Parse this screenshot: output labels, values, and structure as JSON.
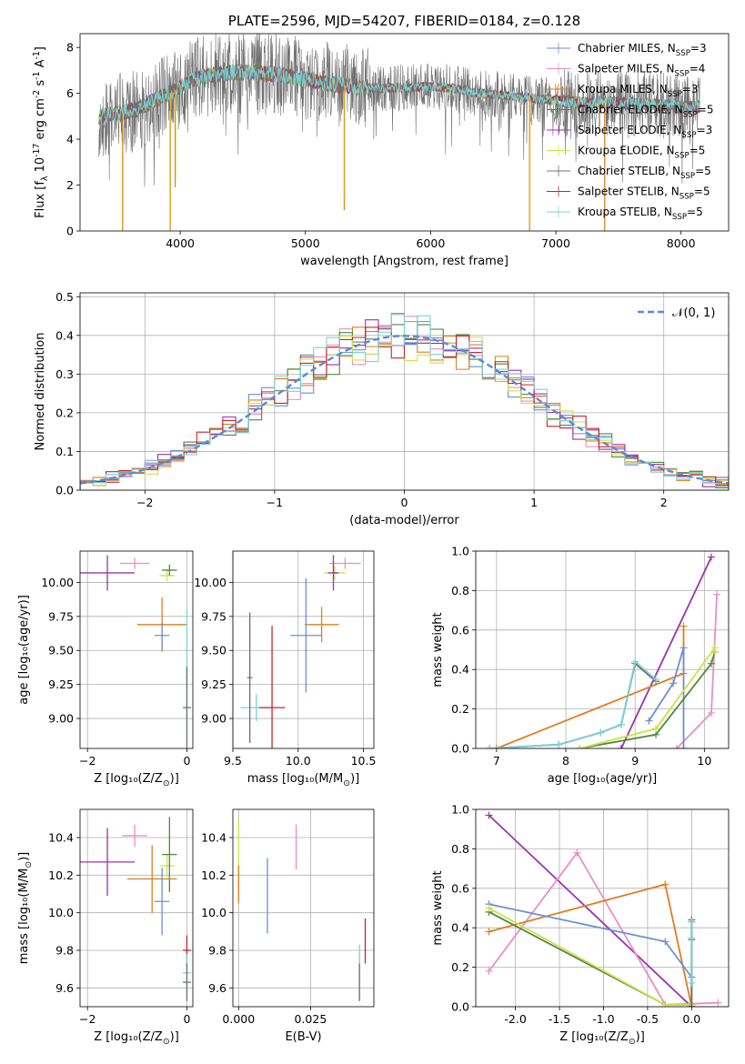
{
  "chart_data": [
    {
      "id": "spectrum",
      "type": "line",
      "title": "PLATE=2596, MJD=54207, FIBERID=0184, z=0.128",
      "xlabel": "wavelength [Angstrom, rest frame]",
      "ylabel": "Flux [$f_\\lambda 10^{-17}$ erg cm$^{-2}$ s$^{-1}$ A$^{-1}$]",
      "xlim": [
        3200,
        8380
      ],
      "ylim": [
        0,
        8.6
      ],
      "xticks": [
        4000,
        5000,
        6000,
        7000,
        8000
      ],
      "yticks": [
        0,
        2,
        4,
        6,
        8
      ],
      "legend": "top-right",
      "grid": false,
      "series": [
        {
          "name": "Chabrier MILES, N$_{SSP}$=3",
          "color": "#6c8fd6"
        },
        {
          "name": "Salpeter MILES, N$_{SSP}$=4",
          "color": "#e98fc4"
        },
        {
          "name": "Kroupa MILES, N$_{SSP}$=3",
          "color": "#e37d1d"
        },
        {
          "name": "Chabrier ELODIE, N$_{SSP}$=5",
          "color": "#4e8a3b"
        },
        {
          "name": "Salpeter ELODIE, N$_{SSP}$=3",
          "color": "#9b32ad"
        },
        {
          "name": "Kroupa ELODIE, N$_{SSP}$=5",
          "color": "#cfe04a"
        },
        {
          "name": "Chabrier STELIB, N$_{SSP}$=5",
          "color": "#707070"
        },
        {
          "name": "Salpeter STELIB, N$_{SSP}$=5",
          "color": "#c8232c"
        },
        {
          "name": "Kroupa STELIB, N$_{SSP}$=5",
          "color": "#79d2d6"
        }
      ],
      "continuum": {
        "x": [
          3350,
          3500,
          3650,
          3800,
          3950,
          4100,
          4250,
          4400,
          4600,
          4800,
          5000,
          5200,
          5400,
          5600,
          5800,
          6000,
          6200,
          6400,
          6600,
          6800,
          7000,
          7200,
          7400,
          7600,
          7800,
          8000,
          8150
        ],
        "y": [
          5.0,
          5.1,
          5.3,
          5.7,
          6.1,
          6.6,
          6.8,
          6.9,
          6.9,
          6.8,
          6.6,
          6.4,
          6.3,
          6.2,
          6.25,
          6.3,
          6.2,
          6.0,
          5.9,
          5.8,
          5.7,
          5.6,
          5.6,
          5.55,
          5.5,
          5.4,
          5.4
        ]
      },
      "absorption_lines": [
        {
          "x": 3540,
          "y": 0.0
        },
        {
          "x": 3920,
          "y": 0.0
        },
        {
          "x": 3960,
          "y": 1.9
        },
        {
          "x": 5310,
          "y": 0.9
        },
        {
          "x": 6790,
          "y": 0.0
        },
        {
          "x": 7390,
          "y": 0.0
        }
      ]
    },
    {
      "id": "residuals",
      "type": "bar",
      "xlabel": "(data-model)/error",
      "ylabel": "Normed distribution",
      "xlim": [
        -2.5,
        2.5
      ],
      "ylim": [
        0,
        0.51
      ],
      "xticks": [
        -2,
        -1,
        0,
        1,
        2
      ],
      "yticks": [
        0.0,
        0.1,
        0.2,
        0.3,
        0.4,
        0.5
      ],
      "grid": true,
      "legend": "top-right",
      "reference": {
        "name": "$\\mathcal{N}(0,1)$",
        "color": "#5b8ad8",
        "style": "dashed"
      },
      "bin_edges_start": -2.5,
      "bin_width": 0.1,
      "base_curve": "gaussian"
    },
    {
      "id": "age_vs_Z",
      "type": "scatter",
      "xlabel": "Z [$\\log_{10}(Z/Z_\\odot)$]",
      "ylabel": "age  [$\\log_{10}(age/yr)$]",
      "xlim": [
        -2.15,
        0.12
      ],
      "ylim": [
        8.78,
        10.23
      ],
      "xticks": [
        -2,
        0
      ],
      "yticks": [
        9.0,
        9.25,
        9.5,
        9.75,
        10.0
      ],
      "grid": true,
      "points": [
        {
          "series": 4,
          "x": -1.6,
          "y": 10.07,
          "xerr": 0.55,
          "yerr": 0.13
        },
        {
          "series": 1,
          "x": -1.05,
          "y": 10.14,
          "xerr": 0.3,
          "yerr": 0.04
        },
        {
          "series": 5,
          "x": -0.4,
          "y": 10.05,
          "xerr": 0.15,
          "yerr": 0.04
        },
        {
          "series": 3,
          "x": -0.35,
          "y": 10.09,
          "xerr": 0.15,
          "yerr": 0.04
        },
        {
          "series": 2,
          "x": -0.5,
          "y": 9.69,
          "xerr": 0.5,
          "yerr": 0.2
        },
        {
          "series": 0,
          "x": -0.5,
          "y": 9.61,
          "xerr": 0.15,
          "yerr": 0.1
        },
        {
          "series": 8,
          "x": 0.0,
          "y": 9.3,
          "xerr": 0.02,
          "yerr": 0.5
        },
        {
          "series": 6,
          "x": 0.0,
          "y": 9.08,
          "xerr": 0.08,
          "yerr": 0.3
        }
      ]
    },
    {
      "id": "age_vs_mass",
      "type": "scatter",
      "xlabel": "mass [$\\log_{10}(M/M_\\odot)$]",
      "ylabel": "",
      "xlim": [
        9.5,
        10.58
      ],
      "ylim": [
        8.78,
        10.23
      ],
      "xticks": [
        9.5,
        10.0,
        10.5
      ],
      "yticks": [
        9.0,
        9.25,
        9.5,
        9.75,
        10.0
      ],
      "grid": true,
      "points": [
        {
          "series": 1,
          "x": 10.36,
          "y": 10.14,
          "xerr": 0.12,
          "yerr": 0.04
        },
        {
          "series": 5,
          "x": 10.28,
          "y": 10.07,
          "xerr": 0.08,
          "yerr": 0.05
        },
        {
          "series": 4,
          "x": 10.27,
          "y": 10.07,
          "xerr": 0.04,
          "yerr": 0.13
        },
        {
          "series": 2,
          "x": 10.18,
          "y": 9.69,
          "xerr": 0.13,
          "yerr": 0.13
        },
        {
          "series": 0,
          "x": 10.06,
          "y": 9.61,
          "xerr": 0.12,
          "yerr": 0.42
        },
        {
          "series": 8,
          "x": 9.68,
          "y": 9.08,
          "xerr": 0.12,
          "yerr": 0.1
        },
        {
          "series": 7,
          "x": 9.8,
          "y": 9.08,
          "xerr": 0.1,
          "yerr": 0.6
        },
        {
          "series": 6,
          "x": 9.63,
          "y": 9.3,
          "xerr": 0.02,
          "yerr": 0.48
        }
      ]
    },
    {
      "id": "weight_vs_age",
      "type": "line",
      "xlabel": "age  [$\\log_{10}(age/yr)$]",
      "ylabel": "mass weight",
      "xlim": [
        6.7,
        10.35
      ],
      "ylim": [
        0,
        1.0
      ],
      "xticks": [
        7,
        8,
        9,
        10
      ],
      "yticks": [
        0.0,
        0.2,
        0.4,
        0.6,
        0.8,
        1.0
      ],
      "grid": true,
      "series": [
        {
          "ref": 4,
          "x": [
            8.8,
            10.1
          ],
          "y": [
            0.0,
            0.97
          ]
        },
        {
          "ref": 1,
          "x": [
            9.6,
            10.1,
            10.18
          ],
          "y": [
            0.0,
            0.18,
            0.78
          ]
        },
        {
          "ref": 2,
          "x": [
            7.0,
            9.7,
            9.7
          ],
          "y": [
            0.0,
            0.38,
            0.62
          ]
        },
        {
          "ref": 0,
          "x": [
            9.2,
            9.55,
            9.7,
            9.7
          ],
          "y": [
            0.14,
            0.33,
            0.51,
            0.0
          ]
        },
        {
          "ref": 3,
          "x": [
            8.2,
            9.3,
            10.1,
            10.15
          ],
          "y": [
            0.0,
            0.07,
            0.43,
            0.49
          ]
        },
        {
          "ref": 5,
          "x": [
            8.2,
            9.3,
            10.15,
            10.15
          ],
          "y": [
            0.0,
            0.1,
            0.51,
            0.49
          ]
        },
        {
          "ref": 6,
          "x": [
            6.9,
            7.9,
            8.5,
            8.8,
            9.0,
            9.3
          ],
          "y": [
            0.0,
            0.02,
            0.08,
            0.12,
            0.43,
            0.34
          ]
        },
        {
          "ref": 8,
          "x": [
            6.9,
            7.9,
            8.5,
            8.8,
            9.0,
            9.3
          ],
          "y": [
            0.0,
            0.02,
            0.08,
            0.12,
            0.44,
            0.35
          ]
        }
      ]
    },
    {
      "id": "mass_vs_Z",
      "type": "scatter",
      "xlabel": "Z [$\\log_{10}(Z/Z_\\odot)$]",
      "ylabel": "mass [$\\log_{10}(M/M_\\odot)$]",
      "xlim": [
        -2.15,
        0.12
      ],
      "ylim": [
        9.5,
        10.55
      ],
      "xticks": [
        -2,
        0
      ],
      "yticks": [
        9.6,
        9.8,
        10.0,
        10.2,
        10.4
      ],
      "grid": true,
      "points": [
        {
          "series": 4,
          "x": -1.6,
          "y": 10.27,
          "xerr": 0.55,
          "yerr": 0.18
        },
        {
          "series": 1,
          "x": -1.05,
          "y": 10.41,
          "xerr": 0.25,
          "yerr": 0.06
        },
        {
          "series": 5,
          "x": -0.4,
          "y": 10.25,
          "xerr": 0.15,
          "yerr": 0.06
        },
        {
          "series": 3,
          "x": -0.35,
          "y": 10.31,
          "xerr": 0.15,
          "yerr": 0.2
        },
        {
          "series": 2,
          "x": -0.7,
          "y": 10.18,
          "xerr": 0.5,
          "yerr": 0.18
        },
        {
          "series": 0,
          "x": -0.5,
          "y": 10.06,
          "xerr": 0.15,
          "yerr": 0.18
        },
        {
          "series": 7,
          "x": 0.0,
          "y": 9.8,
          "xerr": 0.08,
          "yerr": 0.08
        },
        {
          "series": 8,
          "x": 0.0,
          "y": 9.68,
          "xerr": 0.08,
          "yerr": 0.1
        },
        {
          "series": 6,
          "x": 0.0,
          "y": 9.63,
          "xerr": 0.08,
          "yerr": 0.1
        }
      ]
    },
    {
      "id": "mass_vs_ebv",
      "type": "scatter",
      "xlabel": "E(B-V)",
      "ylabel": "",
      "xlim": [
        -0.002,
        0.047
      ],
      "ylim": [
        9.5,
        10.55
      ],
      "xticks": [
        0.0,
        0.025
      ],
      "xticklabels": [
        "0.000",
        "0.025"
      ],
      "yticks": [
        9.6,
        9.8,
        10.0,
        10.2,
        10.4
      ],
      "grid": true,
      "points": [
        {
          "series": 5,
          "x": 0.0,
          "y": 10.3,
          "xerr": 0,
          "yerr": 0.2
        },
        {
          "series": 2,
          "x": 0.0,
          "y": 10.15,
          "xerr": 0,
          "yerr": 0.1
        },
        {
          "series": 0,
          "x": 0.01,
          "y": 10.09,
          "xerr": 0,
          "yerr": 0.2
        },
        {
          "series": 1,
          "x": 0.02,
          "y": 10.35,
          "xerr": 0,
          "yerr": 0.12
        },
        {
          "series": 7,
          "x": 0.044,
          "y": 9.85,
          "xerr": 0,
          "yerr": 0.12
        },
        {
          "series": 8,
          "x": 0.042,
          "y": 9.68,
          "xerr": 0,
          "yerr": 0.15
        },
        {
          "series": 6,
          "x": 0.042,
          "y": 9.63,
          "xerr": 0,
          "yerr": 0.1
        }
      ]
    },
    {
      "id": "weight_vs_Z",
      "type": "line",
      "xlabel": "Z [$\\log_{10}(Z/Z_\\odot)$]",
      "ylabel": "mass weight",
      "xlim": [
        -2.45,
        0.42
      ],
      "ylim": [
        0,
        1.0
      ],
      "xticks": [
        -2.0,
        -1.5,
        -1.0,
        -0.5,
        0.0
      ],
      "yticks": [
        0.0,
        0.2,
        0.4,
        0.6,
        0.8,
        1.0
      ],
      "grid": true,
      "series": [
        {
          "ref": 4,
          "x": [
            -2.3,
            0.0
          ],
          "y": [
            0.97,
            0.0
          ]
        },
        {
          "ref": 1,
          "x": [
            -2.3,
            -1.3,
            -0.3,
            0.3
          ],
          "y": [
            0.18,
            0.78,
            0.01,
            0.02
          ]
        },
        {
          "ref": 2,
          "x": [
            -2.3,
            -0.3,
            0.0,
            0.0
          ],
          "y": [
            0.38,
            0.62,
            0.0,
            0.0
          ]
        },
        {
          "ref": 0,
          "x": [
            -2.3,
            -0.3,
            0.0,
            0.0
          ],
          "y": [
            0.52,
            0.33,
            0.15,
            0.0
          ]
        },
        {
          "ref": 3,
          "x": [
            -2.3,
            -0.3,
            0.0,
            0.0
          ],
          "y": [
            0.48,
            0.01,
            0.01,
            0.43
          ]
        },
        {
          "ref": 5,
          "x": [
            -2.3,
            -0.3,
            0.0,
            0.0
          ],
          "y": [
            0.5,
            0.01,
            0.01,
            0.0
          ]
        },
        {
          "ref": 6,
          "x": [
            0.0,
            0.0,
            0.0
          ],
          "y": [
            0.44,
            0.34,
            0.0
          ]
        },
        {
          "ref": 8,
          "x": [
            0.0,
            0.0,
            0.0
          ],
          "y": [
            0.43,
            0.35,
            0.12
          ]
        }
      ]
    }
  ]
}
